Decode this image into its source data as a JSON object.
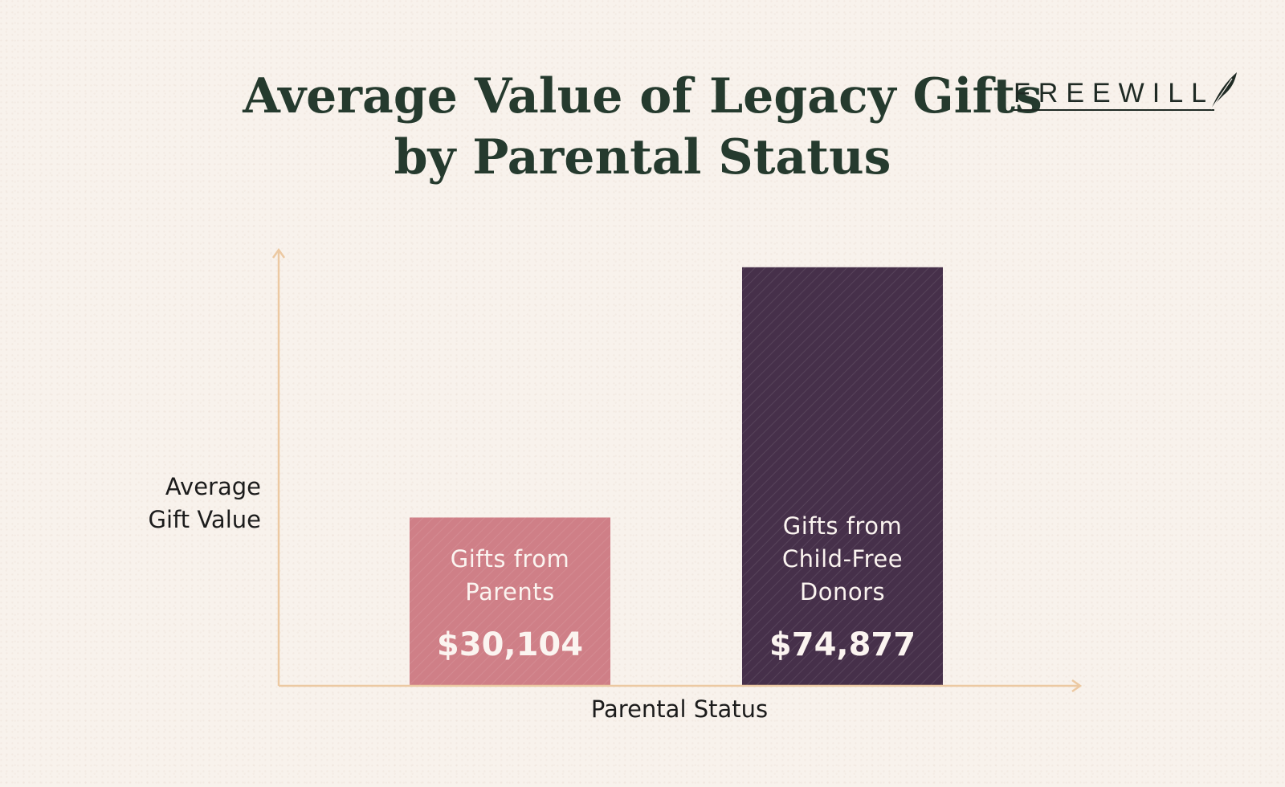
{
  "title": "Average Value of Legacy Gifts by Parental Status",
  "brand": {
    "name": "FREEWILL",
    "logo_icon": "quill-feather-icon"
  },
  "colors": {
    "background": "#f8f2ec",
    "title": "#253a2e",
    "axis": "#ecc9a2",
    "parents_bar": "#cf7f87",
    "childfree_bar": "#46304a"
  },
  "chart_data": {
    "type": "bar",
    "title": "Average Value of Legacy Gifts by Parental Status",
    "xlabel": "Parental Status",
    "ylabel": "Average\nGift Value",
    "categories": [
      "Gifts from\nParents",
      "Gifts from\nChild-Free\nDonors"
    ],
    "values": [
      30104,
      74877
    ],
    "value_labels": [
      "$30,104",
      "$74,877"
    ],
    "ylim": [
      0,
      77000
    ],
    "grid": false,
    "legend": "none"
  }
}
